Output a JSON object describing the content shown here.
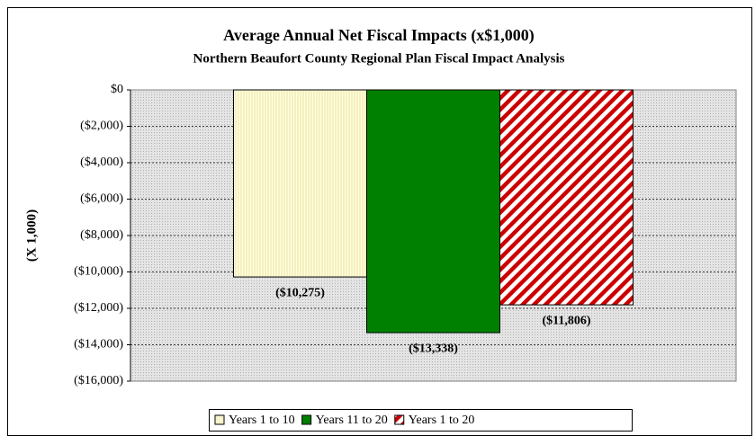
{
  "chart_data": {
    "type": "bar",
    "title": "Average Annual Net Fiscal Impacts (x$1,000)",
    "subtitle": "Northern Beaufort County Regional Plan Fiscal Impact Analysis",
    "ylabel": "(X 1,000)",
    "categories": [
      null
    ],
    "series": [
      {
        "name": "Years 1 to 10",
        "color": "#ffffe0",
        "pattern": "vertical",
        "values": [
          -10275
        ],
        "value_labels": [
          "($10,275)"
        ]
      },
      {
        "name": "Years 11 to 20",
        "color": "#008000",
        "pattern": "solid",
        "values": [
          -13338
        ],
        "value_labels": [
          "($13,338)"
        ]
      },
      {
        "name": "Years 1 to 20",
        "color": "#cc0000",
        "pattern": "diagonal",
        "values": [
          -11806
        ],
        "value_labels": [
          "($11,806)"
        ]
      }
    ],
    "ylim": [
      -16000,
      0
    ],
    "yticks": [
      {
        "value": 0,
        "label": "$0"
      },
      {
        "value": -2000,
        "label": "($2,000)"
      },
      {
        "value": -4000,
        "label": "($4,000)"
      },
      {
        "value": -6000,
        "label": "($6,000)"
      },
      {
        "value": -8000,
        "label": "($8,000)"
      },
      {
        "value": -10000,
        "label": "($10,000)"
      },
      {
        "value": -12000,
        "label": "($12,000)"
      },
      {
        "value": -14000,
        "label": "($14,000)"
      },
      {
        "value": -16000,
        "label": "($16,000)"
      }
    ],
    "grid": true,
    "legend": "bottom"
  }
}
